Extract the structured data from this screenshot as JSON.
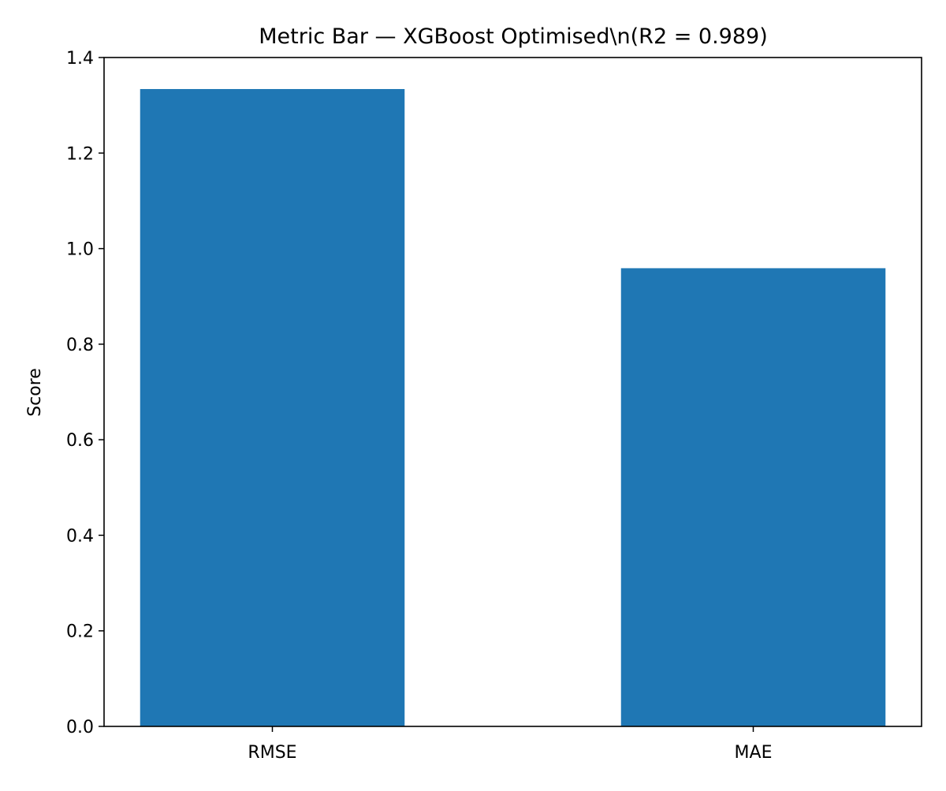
{
  "chart_data": {
    "type": "bar",
    "title": "Metric Bar — XGBoost Optimised\\n(R2 = 0.989)",
    "xlabel": "",
    "ylabel": "Score",
    "categories": [
      "RMSE",
      "MAE"
    ],
    "values": [
      1.334,
      0.959
    ],
    "ylim": [
      0,
      1.4
    ],
    "yticks": [
      0.0,
      0.2,
      0.4,
      0.6,
      0.8,
      1.0,
      1.2,
      1.4
    ],
    "ytick_labels": [
      "0.0",
      "0.2",
      "0.4",
      "0.6",
      "0.8",
      "1.0",
      "1.2",
      "1.4"
    ],
    "bar_color": "#1f77b4",
    "grid": false,
    "legend": "none"
  }
}
